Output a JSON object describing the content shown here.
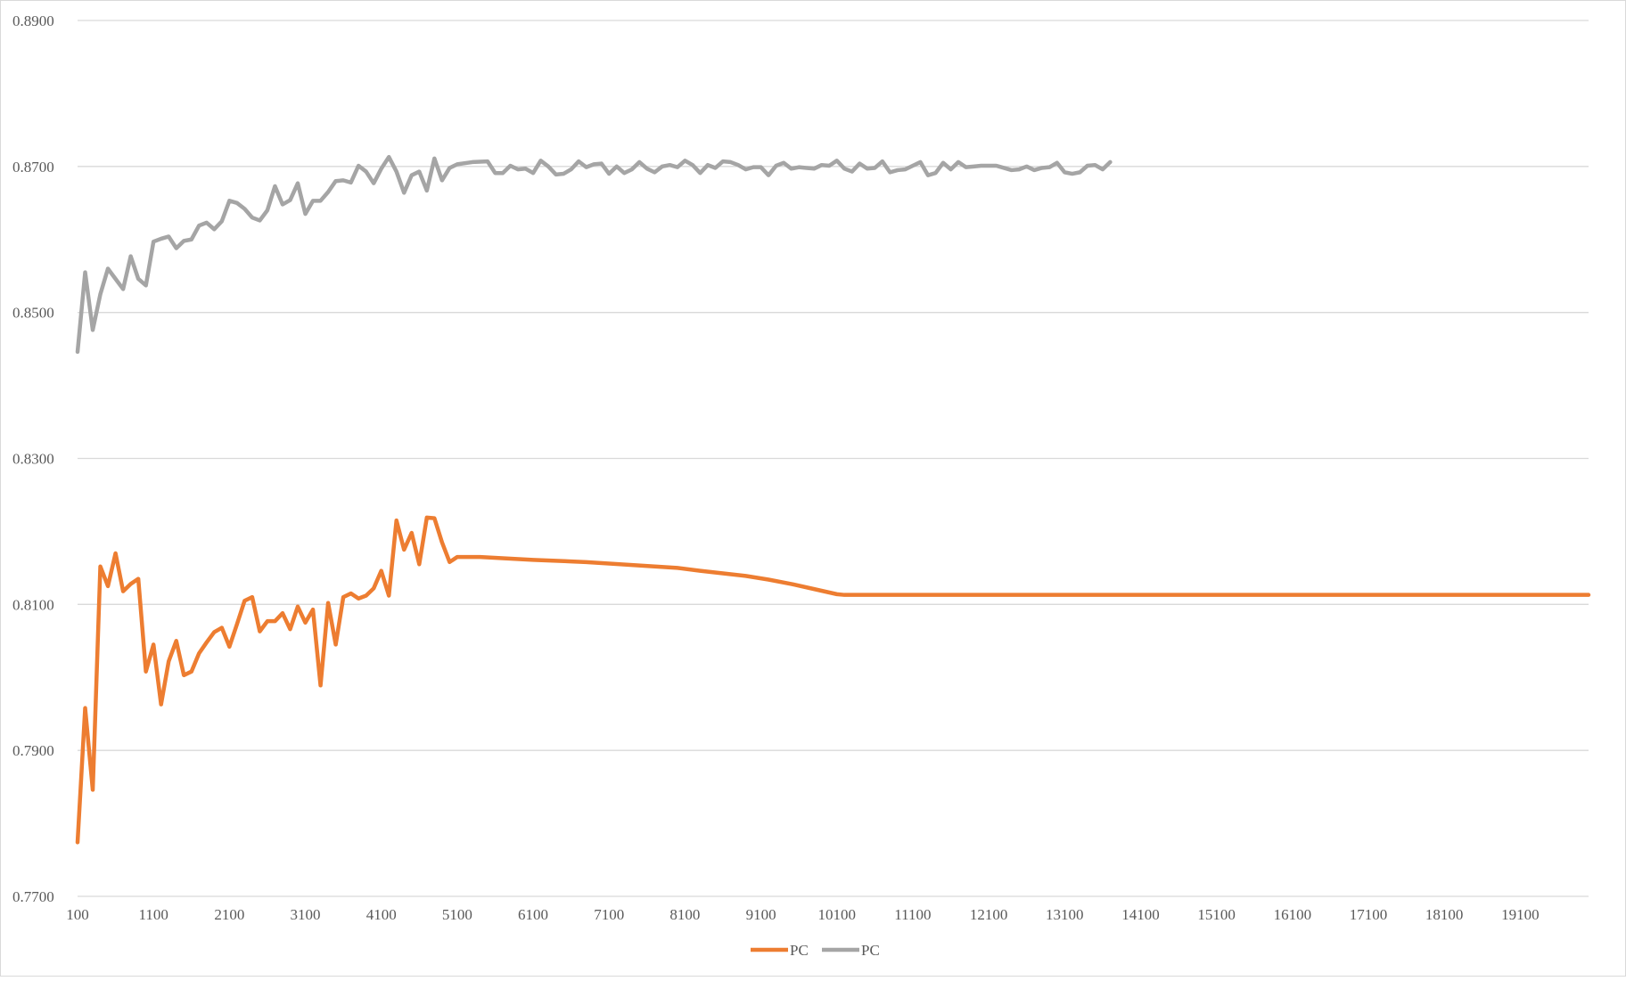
{
  "colors": {
    "series_orange": "#ED7D31",
    "series_gray": "#A5A5A5",
    "gridline": "#D9D9D9",
    "axis_text": "#595959",
    "frame_border": "#D9D9D9"
  },
  "chart_data": {
    "type": "line",
    "title": "",
    "xlabel": "",
    "ylabel": "",
    "ylim": [
      0.77,
      0.89
    ],
    "y_ticks": [
      "0.7700",
      "0.7900",
      "0.8100",
      "0.8300",
      "0.8500",
      "0.8700",
      "0.8900"
    ],
    "x_ticks": [
      "100",
      "1100",
      "2100",
      "3100",
      "4100",
      "5100",
      "6100",
      "7100",
      "8100",
      "9100",
      "10100",
      "11100",
      "12100",
      "13100",
      "14100",
      "15100",
      "16100",
      "17100",
      "18100",
      "19100"
    ],
    "x_range": [
      100,
      20000
    ],
    "grid": true,
    "legend_position": "bottom",
    "series": [
      {
        "name": "PC",
        "color": "#ED7D31",
        "points": [
          [
            100,
            0.7774
          ],
          [
            200,
            0.7958
          ],
          [
            300,
            0.7846
          ],
          [
            400,
            0.8152
          ],
          [
            500,
            0.8125
          ],
          [
            600,
            0.817
          ],
          [
            700,
            0.8118
          ],
          [
            800,
            0.8128
          ],
          [
            900,
            0.8135
          ],
          [
            1000,
            0.8008
          ],
          [
            1100,
            0.8045
          ],
          [
            1200,
            0.7963
          ],
          [
            1300,
            0.8022
          ],
          [
            1400,
            0.805
          ],
          [
            1500,
            0.8003
          ],
          [
            1600,
            0.8008
          ],
          [
            1700,
            0.8033
          ],
          [
            1800,
            0.8048
          ],
          [
            1900,
            0.8062
          ],
          [
            2000,
            0.8068
          ],
          [
            2100,
            0.8042
          ],
          [
            2200,
            0.8073
          ],
          [
            2300,
            0.8105
          ],
          [
            2400,
            0.811
          ],
          [
            2500,
            0.8063
          ],
          [
            2600,
            0.8077
          ],
          [
            2700,
            0.8077
          ],
          [
            2800,
            0.8088
          ],
          [
            2900,
            0.8066
          ],
          [
            3000,
            0.8097
          ],
          [
            3100,
            0.8075
          ],
          [
            3200,
            0.8093
          ],
          [
            3300,
            0.7989
          ],
          [
            3400,
            0.8102
          ],
          [
            3500,
            0.8045
          ],
          [
            3600,
            0.811
          ],
          [
            3700,
            0.8115
          ],
          [
            3800,
            0.8108
          ],
          [
            3900,
            0.8112
          ],
          [
            4000,
            0.8122
          ],
          [
            4100,
            0.8146
          ],
          [
            4200,
            0.8112
          ],
          [
            4300,
            0.8215
          ],
          [
            4400,
            0.8175
          ],
          [
            4500,
            0.8198
          ],
          [
            4600,
            0.8155
          ],
          [
            4700,
            0.8219
          ],
          [
            4800,
            0.8218
          ],
          [
            4900,
            0.8185
          ],
          [
            5000,
            0.8158
          ],
          [
            5100,
            0.8165
          ],
          [
            5400,
            0.8165
          ],
          [
            6100,
            0.8161
          ],
          [
            6800,
            0.8158
          ],
          [
            7400,
            0.8154
          ],
          [
            8000,
            0.815
          ],
          [
            8300,
            0.8146
          ],
          [
            8900,
            0.8139
          ],
          [
            9200,
            0.8134
          ],
          [
            9500,
            0.8128
          ],
          [
            9800,
            0.8121
          ],
          [
            10100,
            0.8114
          ],
          [
            10200,
            0.8113
          ],
          [
            20000,
            0.8113
          ]
        ]
      },
      {
        "name": "PC",
        "color": "#A5A5A5",
        "points": [
          [
            100,
            0.8446
          ],
          [
            200,
            0.8555
          ],
          [
            300,
            0.8476
          ],
          [
            400,
            0.8525
          ],
          [
            500,
            0.856
          ],
          [
            600,
            0.8546
          ],
          [
            700,
            0.8532
          ],
          [
            800,
            0.8577
          ],
          [
            900,
            0.8546
          ],
          [
            1000,
            0.8537
          ],
          [
            1100,
            0.8597
          ],
          [
            1200,
            0.8601
          ],
          [
            1300,
            0.8604
          ],
          [
            1400,
            0.8588
          ],
          [
            1500,
            0.8598
          ],
          [
            1600,
            0.86
          ],
          [
            1700,
            0.8619
          ],
          [
            1800,
            0.8623
          ],
          [
            1900,
            0.8614
          ],
          [
            2000,
            0.8625
          ],
          [
            2100,
            0.8653
          ],
          [
            2200,
            0.865
          ],
          [
            2300,
            0.8642
          ],
          [
            2400,
            0.863
          ],
          [
            2500,
            0.8626
          ],
          [
            2600,
            0.864
          ],
          [
            2700,
            0.8673
          ],
          [
            2800,
            0.8648
          ],
          [
            2900,
            0.8654
          ],
          [
            3000,
            0.8677
          ],
          [
            3100,
            0.8635
          ],
          [
            3200,
            0.8653
          ],
          [
            3300,
            0.8653
          ],
          [
            3400,
            0.8665
          ],
          [
            3500,
            0.868
          ],
          [
            3600,
            0.8681
          ],
          [
            3700,
            0.8678
          ],
          [
            3800,
            0.8701
          ],
          [
            3900,
            0.8693
          ],
          [
            4000,
            0.8677
          ],
          [
            4100,
            0.8697
          ],
          [
            4200,
            0.8713
          ],
          [
            4300,
            0.8693
          ],
          [
            4400,
            0.8664
          ],
          [
            4500,
            0.8688
          ],
          [
            4600,
            0.8693
          ],
          [
            4700,
            0.8667
          ],
          [
            4800,
            0.8711
          ],
          [
            4900,
            0.8681
          ],
          [
            5000,
            0.8698
          ],
          [
            5100,
            0.8703
          ],
          [
            5300,
            0.8706
          ],
          [
            5500,
            0.8707
          ],
          [
            5600,
            0.8691
          ],
          [
            5700,
            0.8691
          ],
          [
            5800,
            0.8701
          ],
          [
            5900,
            0.8696
          ],
          [
            6000,
            0.8697
          ],
          [
            6100,
            0.8691
          ],
          [
            6200,
            0.8708
          ],
          [
            6300,
            0.87
          ],
          [
            6400,
            0.8689
          ],
          [
            6500,
            0.869
          ],
          [
            6600,
            0.8696
          ],
          [
            6700,
            0.8707
          ],
          [
            6800,
            0.8699
          ],
          [
            6900,
            0.8703
          ],
          [
            7000,
            0.8704
          ],
          [
            7100,
            0.869
          ],
          [
            7200,
            0.87
          ],
          [
            7300,
            0.8691
          ],
          [
            7400,
            0.8696
          ],
          [
            7500,
            0.8706
          ],
          [
            7600,
            0.8697
          ],
          [
            7700,
            0.8692
          ],
          [
            7800,
            0.87
          ],
          [
            7900,
            0.8702
          ],
          [
            8000,
            0.8699
          ],
          [
            8100,
            0.8708
          ],
          [
            8200,
            0.8702
          ],
          [
            8300,
            0.8691
          ],
          [
            8400,
            0.8702
          ],
          [
            8500,
            0.8698
          ],
          [
            8600,
            0.8707
          ],
          [
            8700,
            0.8706
          ],
          [
            8800,
            0.8702
          ],
          [
            8900,
            0.8696
          ],
          [
            9000,
            0.8699
          ],
          [
            9100,
            0.8699
          ],
          [
            9200,
            0.8688
          ],
          [
            9300,
            0.8701
          ],
          [
            9400,
            0.8705
          ],
          [
            9500,
            0.8697
          ],
          [
            9600,
            0.8699
          ],
          [
            9700,
            0.8698
          ],
          [
            9800,
            0.8697
          ],
          [
            9900,
            0.8702
          ],
          [
            10000,
            0.8701
          ],
          [
            10100,
            0.8708
          ],
          [
            10200,
            0.8697
          ],
          [
            10300,
            0.8693
          ],
          [
            10400,
            0.8704
          ],
          [
            10500,
            0.8697
          ],
          [
            10600,
            0.8698
          ],
          [
            10700,
            0.8707
          ],
          [
            10800,
            0.8692
          ],
          [
            10900,
            0.8695
          ],
          [
            11000,
            0.8696
          ],
          [
            11100,
            0.8701
          ],
          [
            11200,
            0.8706
          ],
          [
            11300,
            0.8688
          ],
          [
            11400,
            0.8691
          ],
          [
            11500,
            0.8705
          ],
          [
            11600,
            0.8696
          ],
          [
            11700,
            0.8706
          ],
          [
            11800,
            0.8699
          ],
          [
            11900,
            0.87
          ],
          [
            12000,
            0.8701
          ],
          [
            12100,
            0.8701
          ],
          [
            12200,
            0.8701
          ],
          [
            12300,
            0.8698
          ],
          [
            12400,
            0.8695
          ],
          [
            12500,
            0.8696
          ],
          [
            12600,
            0.87
          ],
          [
            12700,
            0.8695
          ],
          [
            12800,
            0.8698
          ],
          [
            12900,
            0.8699
          ],
          [
            13000,
            0.8705
          ],
          [
            13100,
            0.8692
          ],
          [
            13200,
            0.869
          ],
          [
            13300,
            0.8692
          ],
          [
            13400,
            0.8701
          ],
          [
            13500,
            0.8702
          ],
          [
            13600,
            0.8696
          ],
          [
            13700,
            0.8706
          ]
        ]
      }
    ]
  }
}
